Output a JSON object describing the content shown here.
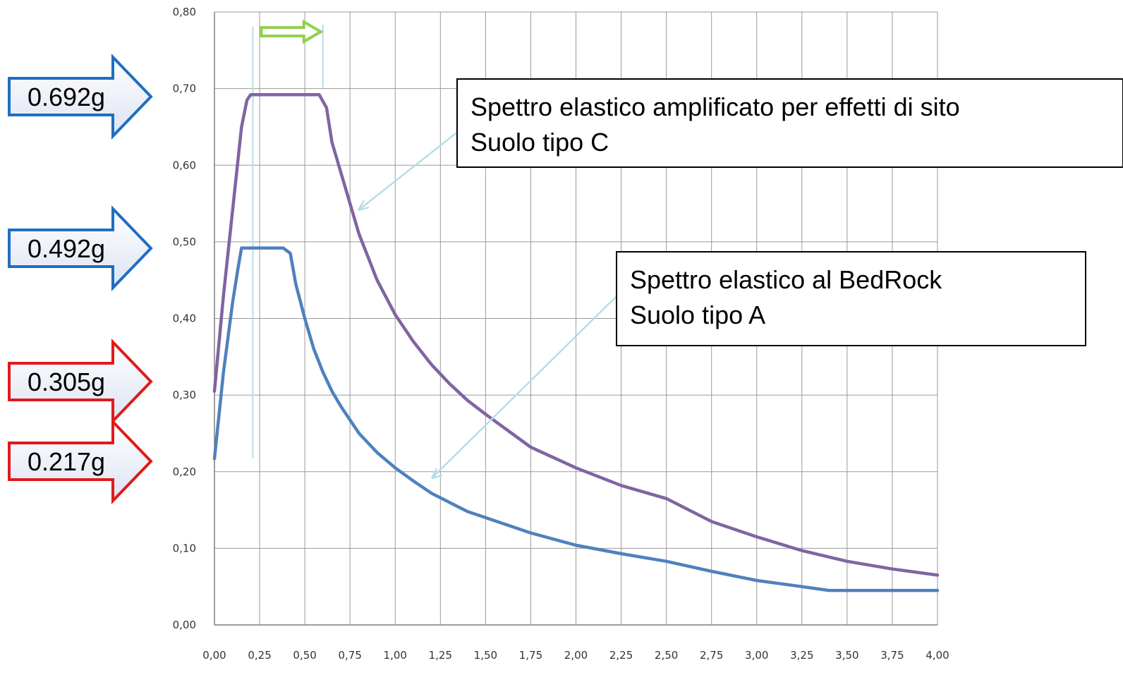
{
  "chart_data": {
    "type": "line",
    "xlabel": "",
    "ylabel": "",
    "xlim": [
      0,
      4
    ],
    "ylim": [
      0,
      0.8
    ],
    "x_ticks": [
      "0,00",
      "0,25",
      "0,50",
      "0,75",
      "1,00",
      "1,25",
      "1,50",
      "1,75",
      "2,00",
      "2,25",
      "2,50",
      "2,75",
      "3,00",
      "3,25",
      "3,50",
      "3,75",
      "4,00"
    ],
    "y_ticks": [
      "0,00",
      "0,10",
      "0,20",
      "0,30",
      "0,40",
      "0,50",
      "0,60",
      "0,70",
      "0,80"
    ],
    "grid": true,
    "series": [
      {
        "color": "#8064a2",
        "x": [
          0,
          0.05,
          0.1,
          0.15,
          0.18,
          0.2,
          0.3,
          0.4,
          0.5,
          0.55,
          0.58,
          0.62,
          0.65,
          0.7,
          0.75,
          0.8,
          0.85,
          0.9,
          1.0,
          1.1,
          1.2,
          1.3,
          1.4,
          1.5,
          1.75,
          2.0,
          2.25,
          2.5,
          2.75,
          3.0,
          3.25,
          3.5,
          3.75,
          4.0
        ],
        "y": [
          0.305,
          0.43,
          0.54,
          0.65,
          0.685,
          0.692,
          0.692,
          0.692,
          0.692,
          0.692,
          0.692,
          0.675,
          0.63,
          0.59,
          0.55,
          0.51,
          0.48,
          0.45,
          0.405,
          0.37,
          0.34,
          0.315,
          0.293,
          0.275,
          0.232,
          0.205,
          0.182,
          0.165,
          0.135,
          0.115,
          0.097,
          0.083,
          0.073,
          0.065
        ]
      },
      {
        "color": "#4f81bd",
        "x": [
          0,
          0.05,
          0.1,
          0.13,
          0.15,
          0.2,
          0.3,
          0.38,
          0.42,
          0.45,
          0.5,
          0.55,
          0.6,
          0.65,
          0.7,
          0.8,
          0.9,
          1.0,
          1.1,
          1.2,
          1.3,
          1.4,
          1.5,
          1.75,
          2.0,
          2.25,
          2.5,
          2.75,
          3.0,
          3.25,
          3.4,
          3.5,
          3.75,
          4.0
        ],
        "y": [
          0.217,
          0.33,
          0.42,
          0.465,
          0.492,
          0.492,
          0.492,
          0.492,
          0.485,
          0.445,
          0.4,
          0.36,
          0.33,
          0.305,
          0.285,
          0.25,
          0.225,
          0.205,
          0.188,
          0.172,
          0.16,
          0.148,
          0.14,
          0.12,
          0.104,
          0.093,
          0.083,
          0.07,
          0.058,
          0.05,
          0.045,
          0.045,
          0.045,
          0.045
        ]
      }
    ],
    "callouts": [
      {
        "line1": "Spettro elastico amplificato per effetti di sito",
        "line2": "Suolo tipo C"
      },
      {
        "line1": "Spettro elastico al BedRock",
        "line2": "Suolo tipo A"
      }
    ],
    "arrow_labels": [
      {
        "text": "0.692g",
        "value": 0.692,
        "color": "#1e6fc0"
      },
      {
        "text": "0.492g",
        "value": 0.492,
        "color": "#1e6fc0"
      },
      {
        "text": "0.305g",
        "value": 0.305,
        "color": "#e01a1a"
      },
      {
        "text": "0.217g",
        "value": 0.217,
        "color": "#e01a1a"
      }
    ],
    "plateau_marker": {
      "x_start": 0.15,
      "x_end": 0.6,
      "color": "#92d050"
    }
  }
}
